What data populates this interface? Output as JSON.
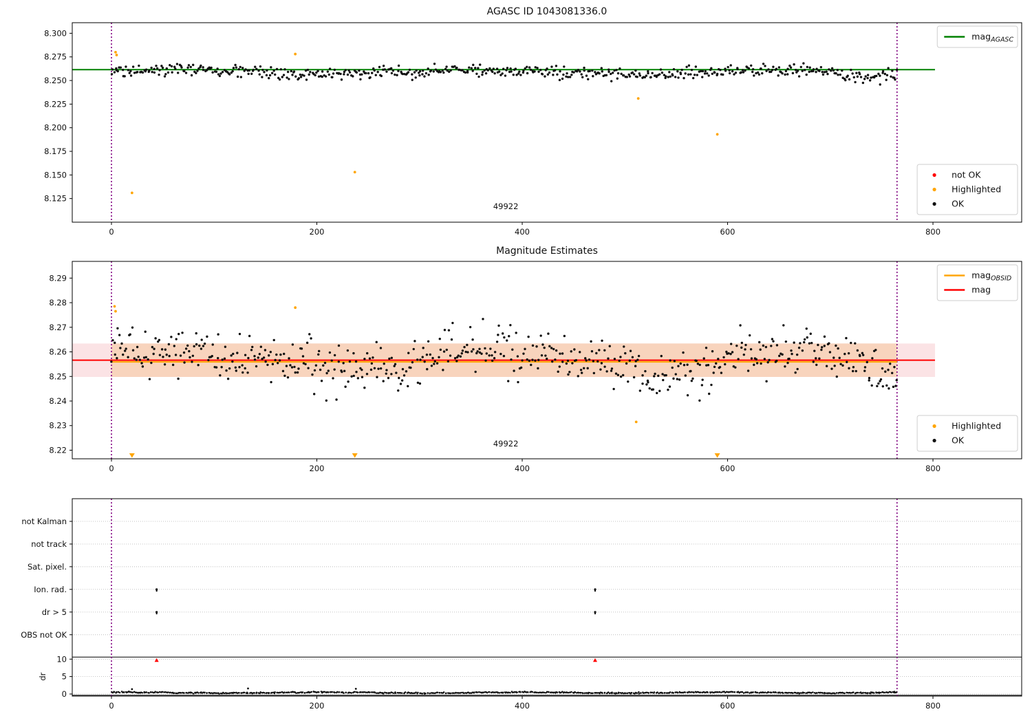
{
  "figure": {
    "background": "#ffffff",
    "obsid_label": "49922"
  },
  "colors": {
    "ok_marker": "#111111",
    "highlighted_marker": "#ffa500",
    "not_ok_marker": "#ff0000",
    "mag_agasc_line": "#008000",
    "mag_line": "#ff0000",
    "mag_obsid_line": "#ffa500",
    "obsid_vline": "#800080",
    "band_light": "#fbe3e5",
    "band_dark": "#f8d4bd",
    "gridline": "#bbbbbb",
    "legend_border": "#cccccc"
  },
  "chart_data": [
    {
      "id": "mag-agasc-panel",
      "type": "scatter",
      "title": "AGASC ID 1043081336.0",
      "xlim": [
        -38.2,
        886.4
      ],
      "ylim": [
        8.1,
        8.3112
      ],
      "xticks": [
        {
          "v": 0,
          "label": "0"
        },
        {
          "v": 200,
          "label": "200"
        },
        {
          "v": 400,
          "label": "400"
        },
        {
          "v": 600,
          "label": "600"
        },
        {
          "v": 800,
          "label": "800"
        }
      ],
      "yticks": [
        {
          "v": 8.3,
          "label": "8.300"
        },
        {
          "v": 8.275,
          "label": "8.275"
        },
        {
          "v": 8.25,
          "label": "8.250"
        },
        {
          "v": 8.225,
          "label": "8.225"
        },
        {
          "v": 8.2,
          "label": "8.200"
        },
        {
          "v": 8.175,
          "label": "8.175"
        },
        {
          "v": 8.15,
          "label": "8.150"
        },
        {
          "v": 8.125,
          "label": "8.125"
        }
      ],
      "vlines": {
        "xs": [
          0,
          765
        ],
        "color": "#800080"
      },
      "lines": [
        {
          "name": "mag_agasc",
          "y": 8.2615,
          "x0": -38.2,
          "x1": 802,
          "color": "#008000",
          "width": 2.0
        }
      ],
      "ok_scatter": {
        "n": 580,
        "x0": 0,
        "x1": 765,
        "mean": 8.2588,
        "sd": 0.0031,
        "seed": 20,
        "waves": [
          {
            "amp": 0.0022,
            "period": 47,
            "phase": 0.2
          },
          {
            "amp": 0.0011,
            "period": 11,
            "phase": 2.0
          }
        ],
        "dips": [
          {
            "center": 742,
            "width": 34,
            "depth": 0.0042
          },
          {
            "center": 300,
            "width": 18,
            "depth": 0.0015
          }
        ],
        "clamp": [
          8.2392,
          8.2748
        ]
      },
      "highlighted": [
        [
          4,
          8.28
        ],
        [
          5,
          8.277
        ],
        [
          20,
          8.131
        ],
        [
          179,
          8.278
        ],
        [
          237,
          8.153
        ],
        [
          513,
          8.231
        ],
        [
          590,
          8.193
        ]
      ],
      "annotation": {
        "text": "49922",
        "x": 384,
        "y": 8.114
      },
      "legends": [
        {
          "loc": "upper-right",
          "items": [
            {
              "type": "line",
              "color": "#008000",
              "label": "mag",
              "sub": "AGASC"
            }
          ]
        },
        {
          "loc": "lower-right",
          "items": [
            {
              "type": "dot",
              "color": "#ff0000",
              "label": "not OK"
            },
            {
              "type": "dot",
              "color": "#ffa500",
              "label": "Highlighted"
            },
            {
              "type": "dot",
              "color": "#111111",
              "label": "OK"
            }
          ]
        }
      ]
    },
    {
      "id": "magnitude-estimates-panel",
      "type": "scatter",
      "title": "Magnitude Estimates",
      "xlim": [
        -38.2,
        886.4
      ],
      "ylim": [
        8.2165,
        8.2968
      ],
      "xticks": [
        {
          "v": 0,
          "label": "0"
        },
        {
          "v": 200,
          "label": "200"
        },
        {
          "v": 400,
          "label": "400"
        },
        {
          "v": 600,
          "label": "600"
        },
        {
          "v": 800,
          "label": "800"
        }
      ],
      "yticks": [
        {
          "v": 8.29,
          "label": "8.29"
        },
        {
          "v": 8.28,
          "label": "8.28"
        },
        {
          "v": 8.27,
          "label": "8.27"
        },
        {
          "v": 8.26,
          "label": "8.26"
        },
        {
          "v": 8.25,
          "label": "8.25"
        },
        {
          "v": 8.24,
          "label": "8.24"
        },
        {
          "v": 8.23,
          "label": "8.23"
        },
        {
          "v": 8.22,
          "label": "8.22"
        }
      ],
      "vlines": {
        "xs": [
          0,
          765
        ],
        "color": "#800080"
      },
      "bands": [
        {
          "x0": -38.2,
          "x1": 802,
          "y0": 8.2498,
          "y1": 8.2634,
          "color": "#fbe3e5"
        },
        {
          "x0": 0,
          "x1": 765,
          "y0": 8.2498,
          "y1": 8.2634,
          "color": "#f8d4bd"
        }
      ],
      "lines": [
        {
          "name": "mag_obsid",
          "y": 8.2559,
          "x0": 0,
          "x1": 765,
          "color": "#ffa500",
          "width": 2.0
        },
        {
          "name": "mag",
          "y": 8.2566,
          "x0": -38.2,
          "x1": 802,
          "color": "#ff0000",
          "width": 2.0
        }
      ],
      "ok_scatter": {
        "n": 580,
        "x0": 0,
        "x1": 765,
        "mean": 8.2578,
        "sd": 0.0047,
        "seed": 77,
        "waves": [
          {
            "amp": 0.003,
            "period": 52,
            "phase": 0.8
          },
          {
            "amp": 0.0016,
            "period": 9.5,
            "phase": 0.0
          }
        ],
        "dips": [
          {
            "center": 545,
            "width": 40,
            "depth": 0.0055
          },
          {
            "center": 742,
            "width": 30,
            "depth": 0.0085
          },
          {
            "center": 268,
            "width": 26,
            "depth": 0.0035
          }
        ],
        "clamp": [
          8.2402,
          8.2757
        ]
      },
      "highlighted": [
        [
          3,
          8.2785
        ],
        [
          4,
          8.2765
        ],
        [
          179,
          8.278
        ],
        [
          511,
          8.2315
        ]
      ],
      "clip_markers": [
        {
          "x": 20
        },
        {
          "x": 237
        },
        {
          "x": 590
        }
      ],
      "annotation": {
        "text": "49922",
        "x": 384,
        "y": 8.2215
      },
      "legends": [
        {
          "loc": "upper-right",
          "items": [
            {
              "type": "line",
              "color": "#ffa500",
              "label": "mag",
              "sub": "OBSID"
            },
            {
              "type": "line",
              "color": "#ff0000",
              "label": "mag"
            }
          ]
        },
        {
          "loc": "lower-right",
          "items": [
            {
              "type": "dot",
              "color": "#ffa500",
              "label": "Highlighted"
            },
            {
              "type": "dot",
              "color": "#111111",
              "label": "OK"
            }
          ]
        }
      ]
    },
    {
      "id": "flags-dr-panel",
      "type": "scatter",
      "title": "",
      "xlim": [
        -38.2,
        886.4
      ],
      "ylim": [
        -0.6,
        56
      ],
      "xticks": [
        {
          "v": 0,
          "label": "0"
        },
        {
          "v": 200,
          "label": "200"
        },
        {
          "v": 400,
          "label": "400"
        },
        {
          "v": 600,
          "label": "600"
        },
        {
          "v": 800,
          "label": "800"
        }
      ],
      "categories": [
        {
          "label": "not Kalman",
          "v": 49.5
        },
        {
          "label": "not track",
          "v": 43
        },
        {
          "label": "Sat. pixel.",
          "v": 36.5
        },
        {
          "label": "Ion. rad.",
          "v": 30
        },
        {
          "label": "dr > 5",
          "v": 23.5
        },
        {
          "label": "OBS not OK",
          "v": 17
        }
      ],
      "dr_ticks": [
        {
          "label": "10",
          "v": 10
        },
        {
          "label": "5",
          "v": 5
        },
        {
          "label": "0",
          "v": 0
        }
      ],
      "ylabel": "dr",
      "separators": [
        10.6,
        -0.35
      ],
      "vlines": {
        "xs": [
          0,
          765
        ],
        "color": "#800080"
      },
      "dr_scatter": {
        "n": 730,
        "x0": 0,
        "x1": 765,
        "mean": 0.4,
        "sd": 0.085,
        "seed": 5,
        "waves": [
          {
            "amp": 0.12,
            "period": 31,
            "phase": 1.2
          },
          {
            "amp": 0.06,
            "period": 6.3,
            "phase": 0.5
          }
        ],
        "dips": [],
        "clamp": [
          0.07,
          1.05
        ]
      },
      "dr_outliers": [
        [
          20,
          1.4
        ],
        [
          133,
          1.6
        ],
        [
          238,
          1.5
        ]
      ],
      "flag_points": [
        {
          "x": 44,
          "category": "Ion. rad.",
          "v": 30
        },
        {
          "x": 44,
          "category": "dr > 5",
          "v": 23.5
        },
        {
          "x": 471,
          "category": "Ion. rad.",
          "v": 30
        },
        {
          "x": 471,
          "category": "dr > 5",
          "v": 23.5
        }
      ],
      "not_ok_points": [
        {
          "x": 44,
          "v": 9.7
        },
        {
          "x": 471,
          "v": 9.7
        }
      ]
    }
  ]
}
